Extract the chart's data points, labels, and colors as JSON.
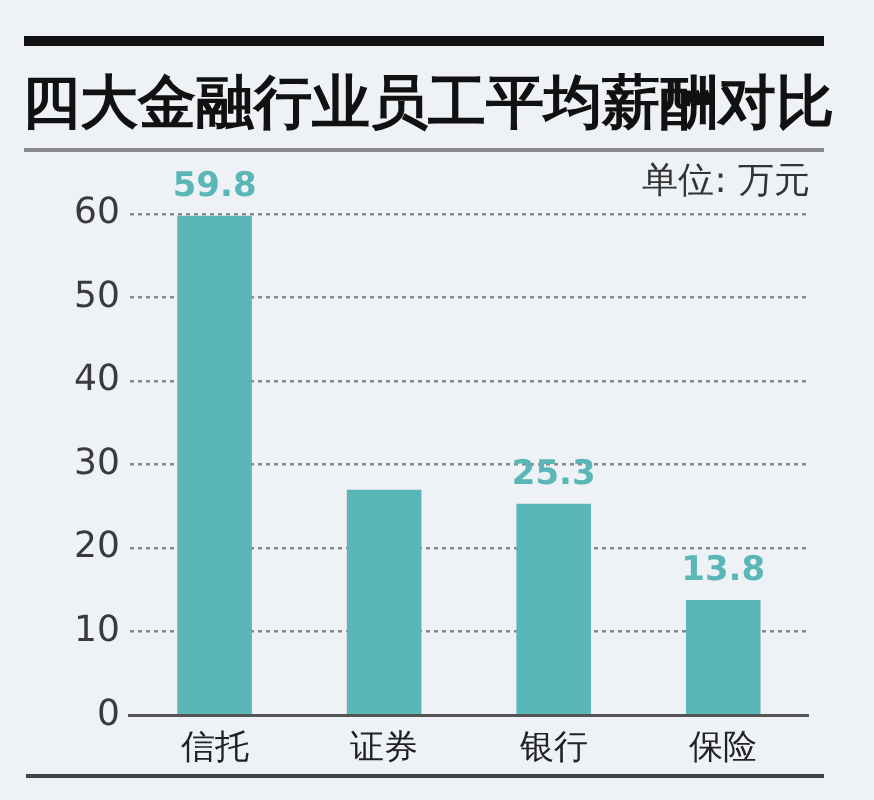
{
  "chart_data": {
    "type": "bar",
    "title": "四大金融行业员工平均薪酬对比",
    "subtitle": "单位: 万元",
    "categories": [
      "信托",
      "证券",
      "银行",
      "保险"
    ],
    "values": [
      59.8,
      27,
      25.3,
      13.8
    ],
    "value_labels": [
      "59.8",
      null,
      "25.3",
      "13.8"
    ],
    "color": "#5bb7b7",
    "ylim": [
      0,
      60
    ],
    "yticks": [
      0,
      10,
      20,
      30,
      40,
      50,
      60
    ],
    "grid": "y"
  }
}
